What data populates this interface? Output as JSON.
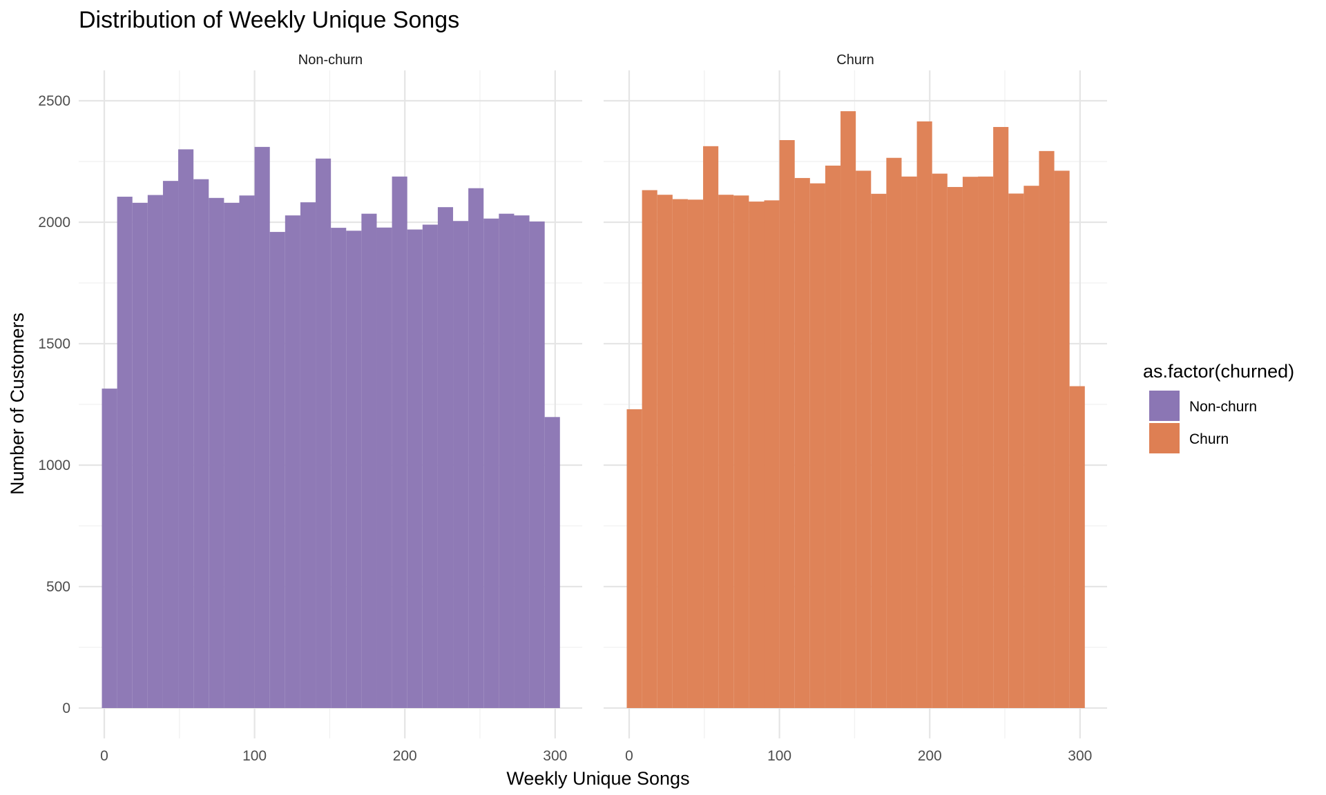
{
  "chart_data": {
    "type": "bar",
    "title": "Distribution of Weekly Unique Songs",
    "xlabel": "Weekly Unique Songs",
    "ylabel": "Number of Customers",
    "xlim": [
      -17,
      318
    ],
    "ylim": [
      -125,
      2625
    ],
    "x_ticks": [
      "0",
      "100",
      "200",
      "300"
    ],
    "y_ticks": [
      "0",
      "500",
      "1000",
      "1500",
      "2000",
      "2500"
    ],
    "x_tick_values": [
      0,
      100,
      200,
      300
    ],
    "y_tick_values": [
      0,
      500,
      1000,
      1500,
      2000,
      2500
    ],
    "bin_width": 10.16,
    "bin_start": -1.6,
    "legend": {
      "title": "as.factor(churned)",
      "position": "right",
      "items": [
        {
          "label": "Non-churn",
          "color": "#8b76b4"
        },
        {
          "label": "Churn",
          "color": "#de7f53"
        }
      ]
    },
    "series": [
      {
        "name": "Non-churn",
        "panel": "Non-churn",
        "color": "#8b76b4",
        "values": [
          1315,
          2105,
          2080,
          2112,
          2170,
          2300,
          2177,
          2100,
          2080,
          2110,
          2310,
          1960,
          2028,
          2082,
          2262,
          1977,
          1965,
          2035,
          1978,
          2188,
          1970,
          1990,
          2062,
          2005,
          2140,
          2015,
          2035,
          2028,
          2003,
          1198
        ]
      },
      {
        "name": "Churn",
        "panel": "Churn",
        "color": "#de7f53",
        "values": [
          1230,
          2132,
          2113,
          2095,
          2093,
          2313,
          2113,
          2110,
          2085,
          2090,
          2338,
          2182,
          2160,
          2233,
          2457,
          2212,
          2117,
          2265,
          2188,
          2415,
          2200,
          2145,
          2187,
          2188,
          2392,
          2118,
          2150,
          2293,
          2212,
          1325
        ]
      }
    ]
  }
}
